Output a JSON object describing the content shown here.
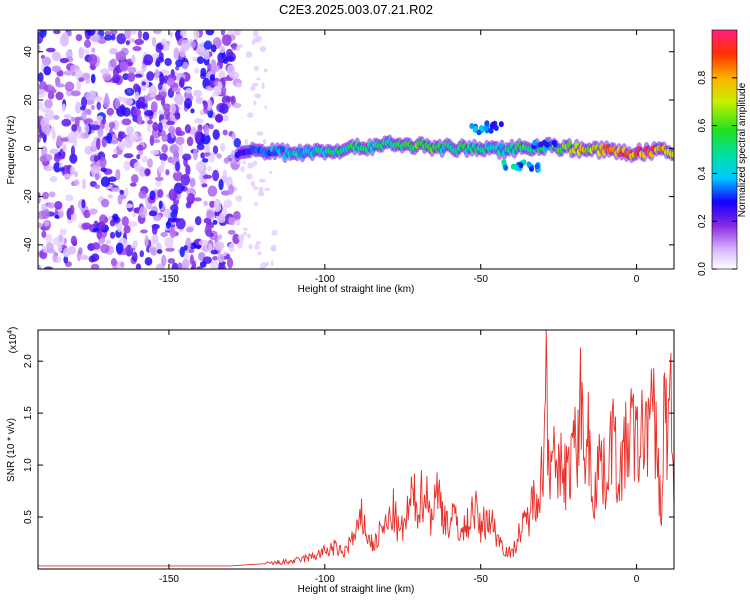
{
  "title": "C2E3.2025.003.07.21.R02",
  "chart_data": [
    {
      "type": "heatmap",
      "xlabel": "Height of straight line (km)",
      "ylabel": "Frequency (Hz)",
      "xlim": [
        -192,
        12
      ],
      "ylim": [
        -50,
        49
      ],
      "xticks": [
        -150,
        -100,
        -50,
        0
      ],
      "yticks": [
        -40,
        -20,
        0,
        20,
        40
      ],
      "colorbar": {
        "label": "Normalized spectral amplitude",
        "range": [
          0,
          1
        ],
        "ticks": [
          "0.0",
          "0.2",
          "0.4",
          "0.6",
          "0.8"
        ],
        "tick_values": [
          0.0,
          0.2,
          0.4,
          0.6,
          0.8
        ]
      },
      "ridge": {
        "x": [
          -128,
          -120,
          -110,
          -100,
          -90,
          -80,
          -70,
          -60,
          -50,
          -45,
          -40,
          -30,
          -20,
          -10,
          0,
          5,
          12
        ],
        "y": [
          -2,
          -1,
          -2,
          -1,
          0,
          2,
          1,
          0,
          0,
          -1,
          0,
          1,
          0,
          -1,
          -2,
          -1,
          -2
        ],
        "amplitude": [
          0.25,
          0.35,
          0.45,
          0.5,
          0.55,
          0.55,
          0.6,
          0.55,
          0.5,
          0.45,
          0.55,
          0.6,
          0.7,
          0.85,
          0.95,
          0.9,
          0.8
        ]
      },
      "secondary_ridge": {
        "x": [
          -50,
          -45,
          -40,
          -35,
          -30
        ],
        "y": [
          8,
          9,
          -7,
          -8,
          1
        ],
        "amplitude": [
          0.4,
          0.35,
          0.45,
          0.4,
          0.35
        ]
      },
      "noise_region": {
        "x_range": [
          -192,
          -128
        ],
        "amplitude_range": [
          0.05,
          0.3
        ]
      }
    },
    {
      "type": "line",
      "xlabel": "Height of straight line (km)",
      "ylabel": "SNR (10 * v/v)",
      "y_multiplier": "(x10",
      "y_multiplier_exp": "4",
      "y_multiplier_close": ")",
      "xlim": [
        -192,
        12
      ],
      "ylim": [
        0,
        2.3
      ],
      "xticks": [
        -150,
        -100,
        -50,
        0
      ],
      "yticks": [
        0.5,
        1.0,
        1.5,
        2.0
      ],
      "ytick_labels": [
        "0.5",
        "1.0",
        "1.5",
        "2.0"
      ],
      "color": "#e8302a",
      "series": [
        {
          "x": [
            -192,
            -160,
            -130,
            -120,
            -110,
            -105,
            -100,
            -97,
            -94,
            -92,
            -90,
            -88,
            -86,
            -84,
            -82,
            -80,
            -78,
            -76,
            -74,
            -72,
            -70,
            -68,
            -66,
            -64,
            -62,
            -60,
            -58,
            -56,
            -54,
            -52,
            -50,
            -48,
            -46,
            -44,
            -42,
            -40,
            -38,
            -36,
            -34,
            -32,
            -30,
            -29,
            -28,
            -27,
            -26,
            -24,
            -22,
            -20,
            -19,
            -18,
            -17,
            -16,
            -14,
            -12,
            -10,
            -8,
            -6,
            -4,
            -2,
            0,
            2,
            4,
            6,
            8,
            9,
            10,
            11,
            12
          ],
          "values": [
            0.03,
            0.03,
            0.03,
            0.05,
            0.08,
            0.12,
            0.18,
            0.22,
            0.16,
            0.28,
            0.35,
            0.55,
            0.3,
            0.25,
            0.4,
            0.45,
            0.6,
            0.35,
            0.5,
            0.75,
            0.65,
            0.85,
            0.55,
            0.8,
            0.6,
            0.45,
            0.55,
            0.35,
            0.5,
            0.65,
            0.4,
            0.55,
            0.45,
            0.3,
            0.2,
            0.15,
            0.35,
            0.45,
            0.6,
            0.85,
            1.0,
            2.3,
            0.9,
            1.7,
            0.8,
            1.1,
            0.95,
            1.4,
            0.9,
            2.2,
            1.0,
            1.6,
            0.7,
            1.2,
            0.9,
            1.45,
            1.0,
            1.15,
            1.5,
            1.25,
            1.4,
            1.6,
            1.5,
            0.5,
            1.9,
            1.3,
            1.8,
            0.7
          ]
        }
      ]
    }
  ]
}
